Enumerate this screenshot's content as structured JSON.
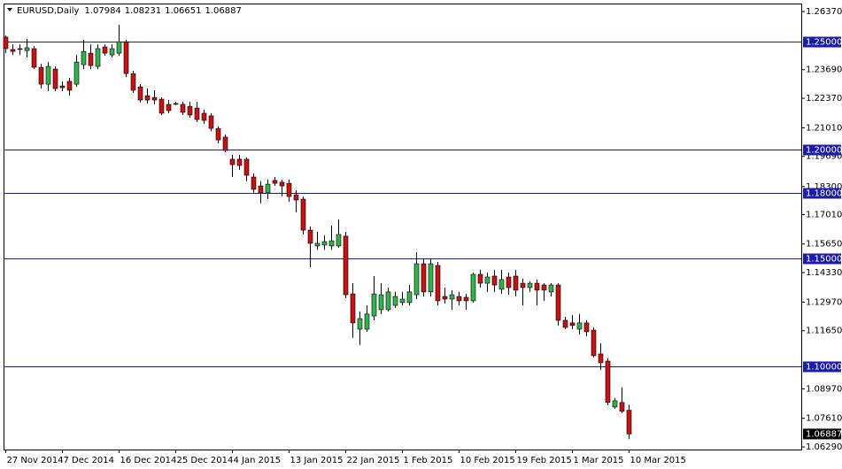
{
  "chart_data": {
    "type": "candlestick",
    "header": {
      "symbol": "EURUSD,Daily",
      "ohlc_labels": [
        "1.07984",
        "1.08231",
        "1.06651",
        "1.06887"
      ]
    },
    "categories": [
      "27 Nov 2014",
      null,
      null,
      null,
      null,
      null,
      null,
      null,
      "7 Dec 2014",
      null,
      null,
      null,
      null,
      null,
      null,
      null,
      "16 Dec 2014",
      null,
      null,
      null,
      null,
      null,
      null,
      null,
      "25 Dec 2014",
      null,
      null,
      null,
      null,
      null,
      null,
      null,
      "4 Jan 2015",
      null,
      null,
      null,
      null,
      null,
      null,
      null,
      "13 Jan 2015",
      null,
      null,
      null,
      null,
      null,
      null,
      null,
      "22 Jan 2015",
      null,
      null,
      null,
      null,
      null,
      null,
      null,
      "1 Feb 2015",
      null,
      null,
      null,
      null,
      null,
      null,
      null,
      "10 Feb 2015",
      null,
      null,
      null,
      null,
      null,
      null,
      null,
      "19 Feb 2015",
      null,
      null,
      null,
      null,
      null,
      null,
      null,
      "1 Mar 2015",
      null,
      null,
      null,
      null,
      null,
      null,
      null,
      "10 Mar 2015"
    ],
    "open": [
      1.2519,
      1.2462,
      1.2466,
      1.2457,
      1.2466,
      1.238,
      1.2302,
      1.2372,
      1.2294,
      1.2315,
      1.2302,
      1.2392,
      1.2445,
      1.2384,
      1.2474,
      1.2437,
      1.2445,
      1.2498,
      1.2351,
      1.229,
      1.2249,
      1.2241,
      1.2233,
      1.2209,
      1.2213,
      1.2209,
      1.22,
      1.2192,
      1.2168,
      1.2156,
      1.2098,
      1.2058,
      1.1956,
      1.1956,
      1.1956,
      1.1874,
      1.1833,
      1.1801,
      1.1858,
      1.185,
      1.1845,
      1.1792,
      1.1772,
      1.1629,
      1.1556,
      1.156,
      1.1556,
      1.1556,
      1.1601,
      1.1335,
      1.1172,
      1.1172,
      1.1233,
      1.1262,
      1.1262,
      1.1282,
      1.1295,
      1.1295,
      1.1331,
      1.1474,
      1.1344,
      1.1466,
      1.1323,
      1.1311,
      1.1323,
      1.1319,
      1.1303,
      1.1425,
      1.1384,
      1.1417,
      1.1356,
      1.1413,
      1.1417,
      1.1384,
      1.1364,
      1.1384,
      1.1376,
      1.1344,
      1.1376,
      1.1213,
      1.1201,
      1.1172,
      1.1201,
      1.1168,
      1.1058,
      1.1025,
      1.0813,
      1.0834,
      1.07984
    ],
    "high": [
      1.2527,
      1.2486,
      1.2486,
      1.2511,
      1.2478,
      1.2396,
      1.2404,
      1.2384,
      1.2315,
      1.2331,
      1.2437,
      1.2506,
      1.2486,
      1.2486,
      1.2486,
      1.2486,
      1.2576,
      1.2506,
      1.2364,
      1.2302,
      1.2282,
      1.2274,
      1.2241,
      1.2229,
      1.2221,
      1.2221,
      1.2221,
      1.2221,
      1.2184,
      1.2168,
      1.2107,
      1.207,
      1.1976,
      1.1976,
      1.1964,
      1.189,
      1.1854,
      1.1862,
      1.1874,
      1.1862,
      1.1862,
      1.1813,
      1.1784,
      1.1646,
      1.1621,
      1.1605,
      1.165,
      1.1678,
      1.1621,
      1.1384,
      1.1254,
      1.1282,
      1.1417,
      1.1384,
      1.1364,
      1.1344,
      1.1344,
      1.1376,
      1.1527,
      1.1499,
      1.1499,
      1.1482,
      1.1364,
      1.1352,
      1.1344,
      1.1335,
      1.1433,
      1.1446,
      1.1433,
      1.1446,
      1.1446,
      1.1433,
      1.1446,
      1.1405,
      1.1393,
      1.1401,
      1.1384,
      1.1384,
      1.1384,
      1.1229,
      1.1238,
      1.1242,
      1.1213,
      1.118,
      1.1107,
      1.1038,
      1.0854,
      1.0903,
      1.08231
    ],
    "low": [
      1.2445,
      1.2437,
      1.2437,
      1.2425,
      1.2372,
      1.2282,
      1.227,
      1.227,
      1.227,
      1.2249,
      1.229,
      1.2372,
      1.2372,
      1.2372,
      1.2433,
      1.2425,
      1.2433,
      1.2335,
      1.2262,
      1.2217,
      1.2213,
      1.2209,
      1.216,
      1.2168,
      1.2205,
      1.216,
      1.2147,
      1.2127,
      1.2119,
      1.2086,
      1.2029,
      1.1988,
      1.1874,
      1.1907,
      1.1854,
      1.1801,
      1.1752,
      1.1772,
      1.1833,
      1.1784,
      1.176,
      1.1711,
      1.1609,
      1.1458,
      1.1539,
      1.1539,
      1.1539,
      1.1548,
      1.1315,
      1.1132,
      1.1099,
      1.116,
      1.1213,
      1.1242,
      1.1254,
      1.127,
      1.1282,
      1.1282,
      1.1311,
      1.1323,
      1.1323,
      1.1282,
      1.1291,
      1.1262,
      1.1282,
      1.1262,
      1.1295,
      1.1364,
      1.1344,
      1.1344,
      1.1335,
      1.1331,
      1.1323,
      1.1282,
      1.1344,
      1.1282,
      1.1303,
      1.1323,
      1.1189,
      1.1172,
      1.1172,
      1.1148,
      1.114,
      1.1042,
      1.0985,
      1.0821,
      1.0805,
      1.0785,
      1.06651
    ],
    "close": [
      1.2466,
      1.2453,
      1.2462,
      1.247,
      1.238,
      1.2302,
      1.2384,
      1.2282,
      1.2286,
      1.2274,
      1.2404,
      1.2453,
      1.2388,
      1.2466,
      1.2445,
      1.2466,
      1.2498,
      1.2351,
      1.2274,
      1.2229,
      1.2229,
      1.2229,
      1.2168,
      1.218,
      1.2209,
      1.2172,
      1.216,
      1.2139,
      1.2135,
      1.2098,
      1.2045,
      1.1996,
      1.1931,
      1.1927,
      1.1882,
      1.1817,
      1.1801,
      1.1841,
      1.1845,
      1.1833,
      1.1784,
      1.1768,
      1.1629,
      1.1568,
      1.1568,
      1.1576,
      1.158,
      1.1609,
      1.1331,
      1.1201,
      1.1221,
      1.1242,
      1.1335,
      1.1331,
      1.1344,
      1.1323,
      1.1311,
      1.1344,
      1.1474,
      1.1344,
      1.1474,
      1.1303,
      1.1311,
      1.1331,
      1.1303,
      1.1303,
      1.1425,
      1.1384,
      1.1413,
      1.1376,
      1.1401,
      1.1364,
      1.1352,
      1.1364,
      1.1384,
      1.1352,
      1.1352,
      1.1376,
      1.1213,
      1.118,
      1.1189,
      1.1201,
      1.116,
      1.105,
      1.1017,
      1.0834,
      1.0842,
      1.0793,
      1.06887
    ],
    "up_color": "#2fb34a",
    "down_color": "#cc1010",
    "wick_color": "#000000",
    "ylim": [
      1.0617,
      1.2674
    ],
    "yticks": [
      {
        "value": 1.2637,
        "label": "1.26370"
      },
      {
        "value": 1.2369,
        "label": "1.23690"
      },
      {
        "value": 1.2237,
        "label": "1.22370"
      },
      {
        "value": 1.2101,
        "label": "1.21010"
      },
      {
        "value": 1.1969,
        "label": "1.19690"
      },
      {
        "value": 1.183,
        "label": "1.18300"
      },
      {
        "value": 1.1701,
        "label": "1.17010"
      },
      {
        "value": 1.1565,
        "label": "1.15650"
      },
      {
        "value": 1.1433,
        "label": "1.14330"
      },
      {
        "value": 1.1297,
        "label": "1.12970"
      },
      {
        "value": 1.1165,
        "label": "1.11650"
      },
      {
        "value": 1.0897,
        "label": "1.08970"
      },
      {
        "value": 1.0761,
        "label": "1.07610"
      },
      {
        "value": 1.0629,
        "label": "1.06290"
      }
    ],
    "levels": [
      {
        "value": 1.25,
        "label": "1.25000"
      },
      {
        "value": 1.2,
        "label": "1.20000"
      },
      {
        "value": 1.18,
        "label": "1.18000"
      },
      {
        "value": 1.15,
        "label": "1.15000"
      },
      {
        "value": 1.1,
        "label": "1.10000"
      }
    ],
    "level_color": "#1c1ca8",
    "last_price_label": "1.06887",
    "grid": false
  }
}
